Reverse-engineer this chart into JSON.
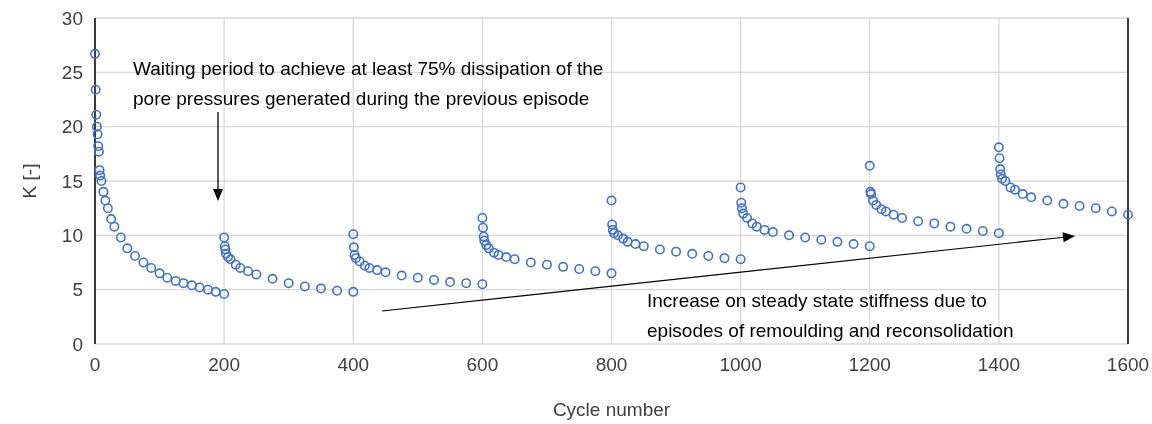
{
  "chart_data": {
    "type": "scatter",
    "xlabel": "Cycle number",
    "ylabel": "K [-]",
    "xlim": [
      0,
      1600
    ],
    "ylim": [
      0,
      30
    ],
    "xticks": [
      0,
      200,
      400,
      600,
      800,
      1000,
      1200,
      1400,
      1600
    ],
    "yticks": [
      0,
      5,
      10,
      15,
      20,
      25,
      30
    ],
    "grid": true,
    "marker": "circle",
    "annotations": [
      "Waiting period to achieve at least 75% dissipation of the\npore pressures generated during the previous episode",
      "Increase on steady state stiffness due to\nepisodes of remoulding and reconsolidation"
    ],
    "series": [
      {
        "color": "#4472c4",
        "x": [
          0,
          1,
          2,
          3,
          4,
          5,
          6,
          7,
          8,
          10,
          13,
          16,
          20,
          25,
          30,
          40,
          50,
          62,
          75,
          87,
          100,
          112,
          125,
          137,
          150,
          162,
          175,
          187,
          200,
          200,
          201,
          202,
          203,
          206,
          210,
          218,
          225,
          237,
          250,
          275,
          300,
          325,
          350,
          375,
          400,
          400,
          401,
          402,
          404,
          410,
          418,
          425,
          437,
          450,
          475,
          500,
          525,
          550,
          575,
          600,
          600,
          601,
          602,
          603,
          606,
          610,
          618,
          625,
          637,
          650,
          675,
          700,
          725,
          750,
          775,
          800,
          800,
          801,
          802,
          804,
          810,
          818,
          825,
          837,
          850,
          875,
          900,
          925,
          950,
          975,
          1000,
          1000,
          1001,
          1002,
          1004,
          1010,
          1018,
          1025,
          1037,
          1050,
          1075,
          1100,
          1125,
          1150,
          1175,
          1200,
          1200,
          1201,
          1202,
          1205,
          1210,
          1218,
          1225,
          1237,
          1250,
          1275,
          1300,
          1325,
          1350,
          1375,
          1400,
          1400,
          1401,
          1402,
          1403,
          1405,
          1410,
          1418,
          1425,
          1437,
          1450,
          1475,
          1500,
          1525,
          1550,
          1575,
          1600
        ],
        "values": [
          26.7,
          23.4,
          21.1,
          20,
          19.3,
          18.2,
          17.7,
          16,
          15.5,
          15,
          14,
          13.2,
          12.5,
          11.5,
          10.8,
          9.8,
          8.8,
          8.1,
          7.5,
          7,
          6.5,
          6.1,
          5.8,
          5.6,
          5.4,
          5.2,
          5,
          4.8,
          4.6,
          9.8,
          9,
          8.7,
          8.3,
          8,
          7.8,
          7.3,
          7,
          6.7,
          6.4,
          6,
          5.6,
          5.3,
          5.1,
          4.9,
          4.8,
          10.1,
          8.9,
          8.2,
          7.9,
          7.6,
          7.2,
          7,
          6.8,
          6.6,
          6.3,
          6.1,
          5.9,
          5.7,
          5.6,
          5.5,
          11.6,
          10.7,
          9.9,
          9.5,
          9.1,
          8.8,
          8.4,
          8.2,
          8,
          7.8,
          7.5,
          7.3,
          7.1,
          6.9,
          6.7,
          6.5,
          13.2,
          11,
          10.5,
          10.2,
          10,
          9.7,
          9.4,
          9.2,
          9,
          8.7,
          8.5,
          8.3,
          8.1,
          7.9,
          7.8,
          14.4,
          13,
          12.5,
          12,
          11.6,
          11.1,
          10.8,
          10.5,
          10.3,
          10,
          9.8,
          9.6,
          9.4,
          9.2,
          9,
          16.4,
          14,
          13.8,
          13.2,
          12.8,
          12.4,
          12.2,
          11.9,
          11.6,
          11.3,
          11.1,
          10.8,
          10.6,
          10.4,
          10.2,
          18.1,
          17.1,
          16.1,
          15.6,
          15.2,
          15,
          14.4,
          14.2,
          13.8,
          13.5,
          13.2,
          12.9,
          12.7,
          12.5,
          12.2,
          11.9
        ]
      }
    ]
  }
}
